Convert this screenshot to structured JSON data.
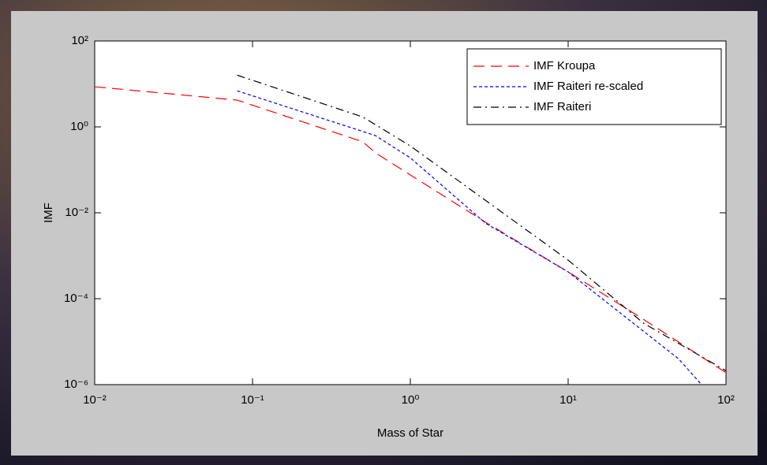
{
  "chart_data": {
    "type": "line",
    "xlabel": "Mass of Star",
    "ylabel": "IMF",
    "xscale": "log",
    "yscale": "log",
    "xlim": [
      0.01,
      100
    ],
    "ylim": [
      1e-06,
      100
    ],
    "xticks": [
      {
        "value": 0.01,
        "label": "10⁻²"
      },
      {
        "value": 0.1,
        "label": "10⁻¹"
      },
      {
        "value": 1,
        "label": "10⁰"
      },
      {
        "value": 10,
        "label": "10¹"
      },
      {
        "value": 100,
        "label": "10²"
      }
    ],
    "yticks": [
      {
        "value": 1e-06,
        "label": "10⁻⁶"
      },
      {
        "value": 0.0001,
        "label": "10⁻⁴"
      },
      {
        "value": 0.01,
        "label": "10⁻²"
      },
      {
        "value": 1,
        "label": "10⁰"
      },
      {
        "value": 100,
        "label": "10²"
      }
    ],
    "grid": false,
    "legend": "upper right",
    "series": [
      {
        "name": "IMF Kroupa",
        "color": "#ff0000",
        "linestyle": "dashed",
        "x": [
          0.01,
          0.08,
          0.5,
          0.6,
          1,
          3,
          10,
          30,
          100
        ],
        "values": [
          8.6,
          4.2,
          0.45,
          0.25,
          0.076,
          0.006,
          0.00042,
          3.3e-05,
          1.9e-06
        ]
      },
      {
        "name": "IMF Raiteri re-scaled",
        "color": "#0000ff",
        "linestyle": "dotted",
        "x": [
          0.08,
          0.6,
          1,
          3,
          10,
          50,
          70
        ],
        "values": [
          6.9,
          0.63,
          0.19,
          0.0057,
          0.00042,
          4e-06,
          1e-06
        ]
      },
      {
        "name": "IMF Raiteri",
        "color": "#000000",
        "linestyle": "dashdot",
        "x": [
          0.08,
          0.5,
          1,
          10,
          30,
          100
        ],
        "values": [
          16,
          1.7,
          0.36,
          0.00079,
          2.7e-05,
          2.1e-06
        ]
      }
    ]
  }
}
